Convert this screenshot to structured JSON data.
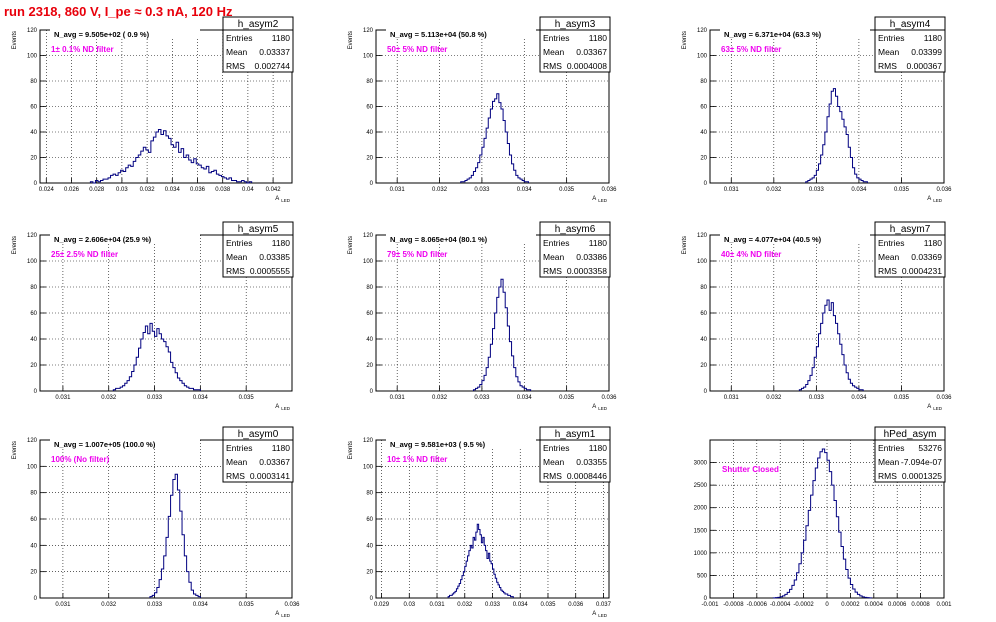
{
  "page": {
    "title": "run 2318,   860 V, I_pe ≈ 0.3 nA, 120 Hz",
    "colors": {
      "title": "#e8000b",
      "filter_label": "#ee00ee",
      "histogram": "#000080",
      "grid": "#000000"
    }
  },
  "chart_data": [
    {
      "type": "bar",
      "name": "h_asym2",
      "navg": "N_avg = 9.505e+02 ( 0.9 %)",
      "filter": "1± 0.1% ND filter",
      "stats": {
        "entries": "1180",
        "mean": "0.03337",
        "rms": "0.002744"
      },
      "ylabel": "Events",
      "xlabel": "A_LED",
      "xlim": [
        0.0235,
        0.0435
      ],
      "ylim": [
        0,
        120
      ],
      "xticks": [
        0.024,
        0.026,
        0.028,
        0.03,
        0.032,
        0.034,
        0.036,
        0.038,
        0.04,
        0.042
      ],
      "xtick_labels": [
        "0.024",
        "0.026",
        "0.028",
        "0.03",
        "0.032",
        "0.034",
        "0.036",
        "0.038",
        "0.04",
        "0.042"
      ],
      "yticks": [
        0,
        20,
        40,
        60,
        80,
        100,
        120
      ],
      "ytick_labels": [
        "0",
        "20",
        "40",
        "60",
        "80",
        "100",
        "120"
      ],
      "bins": {
        "lo": 0.0275,
        "width": 0.0002,
        "values": [
          1,
          0,
          2,
          1,
          2,
          3,
          3,
          4,
          6,
          7,
          6,
          8,
          10,
          9,
          12,
          14,
          13,
          17,
          20,
          22,
          25,
          28,
          26,
          24,
          33,
          36,
          40,
          42,
          38,
          41,
          37,
          35,
          30,
          28,
          32,
          24,
          27,
          20,
          22,
          18,
          16,
          19,
          15,
          14,
          12,
          11,
          13,
          8,
          9,
          10,
          7,
          6,
          5,
          4,
          3,
          4,
          2,
          2,
          1,
          1,
          2,
          1,
          0,
          1
        ]
      }
    },
    {
      "type": "bar",
      "name": "h_asym3",
      "navg": "N_avg = 5.113e+04 (50.8 %)",
      "filter": "50± 5% ND filter",
      "stats": {
        "entries": "1180",
        "mean": "0.03367",
        "rms": "0.0004008"
      },
      "ylabel": "Events",
      "xlabel": "A_LED",
      "xlim": [
        0.0305,
        0.036
      ],
      "ylim": [
        0,
        120
      ],
      "xticks": [
        0.031,
        0.032,
        0.033,
        0.034,
        0.035,
        0.036
      ],
      "xtick_labels": [
        "0.031",
        "0.032",
        "0.033",
        "0.034",
        "0.035",
        "0.036"
      ],
      "yticks": [
        0,
        20,
        40,
        60,
        80,
        100,
        120
      ],
      "ytick_labels": [
        "0",
        "20",
        "40",
        "60",
        "80",
        "100",
        "120"
      ],
      "bins": {
        "lo": 0.0325,
        "width": 5e-05,
        "values": [
          1,
          1,
          2,
          3,
          4,
          6,
          9,
          12,
          16,
          22,
          28,
          35,
          43,
          51,
          58,
          64,
          66,
          70,
          63,
          58,
          49,
          40,
          31,
          22,
          15,
          10,
          6,
          4,
          3,
          2,
          1,
          1
        ]
      }
    },
    {
      "type": "bar",
      "name": "h_asym4",
      "navg": "N_avg = 6.371e+04 (63.3 %)",
      "filter": "63± 5% ND filter",
      "stats": {
        "entries": "1180",
        "mean": "0.03399",
        "rms": "0.000367"
      },
      "ylabel": "Events",
      "xlabel": "A_LED",
      "xlim": [
        0.0305,
        0.036
      ],
      "ylim": [
        0,
        120
      ],
      "xticks": [
        0.031,
        0.032,
        0.033,
        0.034,
        0.035,
        0.036
      ],
      "xtick_labels": [
        "0.031",
        "0.032",
        "0.033",
        "0.034",
        "0.035",
        "0.036"
      ],
      "yticks": [
        0,
        20,
        40,
        60,
        80,
        100,
        120
      ],
      "ytick_labels": [
        "0",
        "20",
        "40",
        "60",
        "80",
        "100",
        "120"
      ],
      "bins": {
        "lo": 0.03275,
        "width": 5e-05,
        "values": [
          1,
          2,
          3,
          4,
          6,
          10,
          15,
          22,
          30,
          40,
          52,
          62,
          72,
          74,
          68,
          60,
          56,
          50,
          44,
          38,
          28,
          20,
          12,
          7,
          4,
          3,
          2,
          1,
          1
        ]
      }
    },
    {
      "type": "bar",
      "name": "h_asym5",
      "navg": "N_avg = 2.606e+04 (25.9 %)",
      "filter": "25± 2.5% ND filter",
      "stats": {
        "entries": "1180",
        "mean": "0.03385",
        "rms": "0.0005555"
      },
      "ylabel": "Events",
      "xlabel": "A_LED",
      "xlim": [
        0.0305,
        0.036
      ],
      "ylim": [
        0,
        120
      ],
      "xticks": [
        0.031,
        0.032,
        0.033,
        0.034,
        0.035
      ],
      "xtick_labels": [
        "0.031",
        "0.032",
        "0.033",
        "0.034",
        "0.035"
      ],
      "yticks": [
        0,
        20,
        40,
        60,
        80,
        100,
        120
      ],
      "ytick_labels": [
        "0",
        "20",
        "40",
        "60",
        "80",
        "100",
        "120"
      ],
      "bins": {
        "lo": 0.0321,
        "width": 5e-05,
        "values": [
          1,
          2,
          2,
          3,
          4,
          6,
          8,
          11,
          15,
          20,
          26,
          33,
          40,
          45,
          50,
          44,
          52,
          46,
          42,
          48,
          44,
          40,
          38,
          34,
          30,
          22,
          18,
          14,
          10,
          8,
          6,
          4,
          3,
          2,
          2,
          1,
          1,
          1
        ]
      }
    },
    {
      "type": "bar",
      "name": "h_asym6",
      "navg": "N_avg = 8.065e+04 (80.1 %)",
      "filter": "79± 5% ND filter",
      "stats": {
        "entries": "1180",
        "mean": "0.03386",
        "rms": "0.0003358"
      },
      "ylabel": "Events",
      "xlabel": "A_LED",
      "xlim": [
        0.0305,
        0.036
      ],
      "ylim": [
        0,
        120
      ],
      "xticks": [
        0.031,
        0.032,
        0.033,
        0.034,
        0.035,
        0.036
      ],
      "xtick_labels": [
        "0.031",
        "0.032",
        "0.033",
        "0.034",
        "0.035",
        "0.036"
      ],
      "yticks": [
        0,
        20,
        40,
        60,
        80,
        100,
        120
      ],
      "ytick_labels": [
        "0",
        "20",
        "40",
        "60",
        "80",
        "100",
        "120"
      ],
      "bins": {
        "lo": 0.0328,
        "width": 5e-05,
        "values": [
          1,
          2,
          3,
          5,
          8,
          12,
          18,
          26,
          36,
          48,
          60,
          72,
          80,
          86,
          76,
          64,
          50,
          38,
          27,
          18,
          11,
          7,
          4,
          3,
          2,
          1,
          1
        ]
      }
    },
    {
      "type": "bar",
      "name": "h_asym7",
      "navg": "N_avg = 4.077e+04 (40.5 %)",
      "filter": "40± 4% ND filter",
      "stats": {
        "entries": "1180",
        "mean": "0.03369",
        "rms": "0.0004231"
      },
      "ylabel": "Events",
      "xlabel": "A_LED",
      "xlim": [
        0.0305,
        0.036
      ],
      "ylim": [
        0,
        120
      ],
      "xticks": [
        0.031,
        0.032,
        0.033,
        0.034,
        0.035,
        0.036
      ],
      "xtick_labels": [
        "0.031",
        "0.032",
        "0.033",
        "0.034",
        "0.035",
        "0.036"
      ],
      "yticks": [
        0,
        20,
        40,
        60,
        80,
        100,
        120
      ],
      "ytick_labels": [
        "0",
        "20",
        "40",
        "60",
        "80",
        "100",
        "120"
      ],
      "bins": {
        "lo": 0.0326,
        "width": 5e-05,
        "values": [
          1,
          2,
          3,
          5,
          8,
          12,
          18,
          26,
          34,
          44,
          52,
          60,
          66,
          70,
          62,
          68,
          58,
          52,
          44,
          36,
          28,
          20,
          14,
          9,
          6,
          4,
          3,
          2,
          1,
          1
        ]
      }
    },
    {
      "type": "bar",
      "name": "h_asym0",
      "navg": "N_avg = 1.007e+05 (100.0 %)",
      "filter": "100% (No filter)",
      "stats": {
        "entries": "1180",
        "mean": "0.03367",
        "rms": "0.0003141"
      },
      "ylabel": "Events",
      "xlabel": "A_LED",
      "xlim": [
        0.0305,
        0.036
      ],
      "ylim": [
        0,
        120
      ],
      "xticks": [
        0.031,
        0.032,
        0.033,
        0.034,
        0.035,
        0.036
      ],
      "xtick_labels": [
        "0.031",
        "0.032",
        "0.033",
        "0.034",
        "0.035",
        "0.036"
      ],
      "yticks": [
        0,
        20,
        40,
        60,
        80,
        100,
        120
      ],
      "ytick_labels": [
        "0",
        "20",
        "40",
        "60",
        "80",
        "100",
        "120"
      ],
      "bins": {
        "lo": 0.0329,
        "width": 5e-05,
        "values": [
          1,
          2,
          4,
          8,
          14,
          22,
          32,
          46,
          62,
          78,
          90,
          94,
          82,
          66,
          48,
          32,
          20,
          12,
          6,
          3,
          2,
          1
        ]
      }
    },
    {
      "type": "bar",
      "name": "h_asym1",
      "navg": "N_avg = 9.581e+03 ( 9.5 %)",
      "filter": "10± 1% ND filter",
      "stats": {
        "entries": "1180",
        "mean": "0.03355",
        "rms": "0.0008446"
      },
      "ylabel": "Events",
      "xlabel": "A_LED",
      "xlim": [
        0.0288,
        0.0372
      ],
      "ylim": [
        0,
        120
      ],
      "xticks": [
        0.029,
        0.03,
        0.031,
        0.032,
        0.033,
        0.034,
        0.035,
        0.036,
        0.037
      ],
      "xtick_labels": [
        "0.029",
        "0.03",
        "0.031",
        "0.032",
        "0.033",
        "0.034",
        "0.035",
        "0.036",
        "0.037"
      ],
      "yticks": [
        0,
        20,
        40,
        60,
        80,
        100,
        120
      ],
      "ytick_labels": [
        "0",
        "20",
        "40",
        "60",
        "80",
        "100",
        "120"
      ],
      "bins": {
        "lo": 0.0314,
        "width": 5e-05,
        "values": [
          1,
          2,
          2,
          3,
          4,
          5,
          7,
          9,
          11,
          14,
          17,
          20,
          24,
          28,
          32,
          36,
          40,
          38,
          46,
          44,
          50,
          56,
          52,
          48,
          42,
          46,
          40,
          36,
          30,
          34,
          28,
          26,
          22,
          18,
          15,
          12,
          10,
          8,
          6,
          5,
          4,
          3,
          3,
          2,
          2,
          1,
          1
        ]
      }
    },
    {
      "type": "bar",
      "name": "hPed_asym",
      "navg": "",
      "filter": "Shutter Closed",
      "stats": {
        "entries": "53276",
        "mean": "-7.094e-07",
        "rms": "0.0001325"
      },
      "ylabel": "",
      "xlabel": "",
      "xlim": [
        -0.001,
        0.001
      ],
      "ylim": [
        0,
        3500
      ],
      "xticks": [
        -0.001,
        -0.0008,
        -0.0006,
        -0.0004,
        -0.0002,
        0,
        0.0002,
        0.0004,
        0.0006,
        0.0008,
        0.001
      ],
      "xtick_labels": [
        "-0.001",
        "-0.0008",
        "-0.0006",
        "-0.0004",
        "-0.0002",
        "0",
        "0.0002",
        "0.0004",
        "0.0006",
        "0.0008",
        "0.001"
      ],
      "yticks": [
        0,
        500,
        1000,
        1500,
        2000,
        2500,
        3000
      ],
      "ytick_labels": [
        "0",
        "500",
        "1000",
        "1500",
        "2000",
        "2500",
        "3000"
      ],
      "bins": {
        "lo": -0.00046,
        "width": 2e-05,
        "values": [
          4,
          8,
          15,
          28,
          48,
          80,
          125,
          190,
          280,
          400,
          560,
          760,
          1000,
          1280,
          1600,
          1940,
          2280,
          2600,
          2880,
          3100,
          3240,
          3300,
          3220,
          3050,
          2800,
          2500,
          2160,
          1800,
          1460,
          1140,
          860,
          630,
          440,
          300,
          200,
          130,
          80,
          48,
          26,
          14,
          7,
          3
        ]
      }
    }
  ]
}
